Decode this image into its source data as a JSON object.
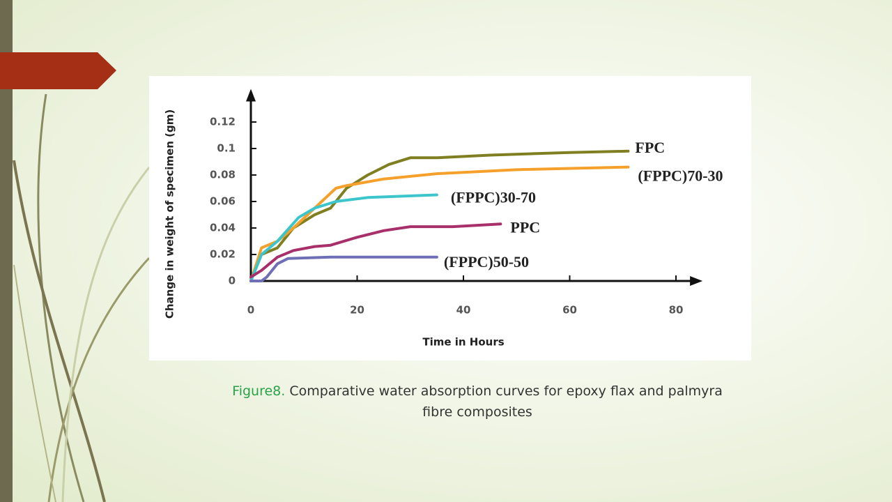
{
  "chart_data": {
    "type": "line",
    "y_label": "Change in weight of specimen (gm)",
    "x_label": "Time in Hours",
    "xlim": [
      0,
      85
    ],
    "ylim": [
      0,
      0.145
    ],
    "xticks": [
      0,
      20,
      40,
      60,
      80
    ],
    "yticks": [
      0,
      0.02,
      0.04,
      0.06,
      0.08,
      0.1,
      0.12
    ],
    "grid": false,
    "series": [
      {
        "name": "FPC",
        "color": "#7f7f22",
        "x": [
          0,
          2,
          5,
          8,
          12,
          15,
          18,
          22,
          26,
          30,
          35,
          45,
          60,
          71
        ],
        "values": [
          0,
          0.02,
          0.025,
          0.04,
          0.05,
          0.055,
          0.07,
          0.08,
          0.088,
          0.093,
          0.093,
          0.095,
          0.097,
          0.098
        ]
      },
      {
        "name": "(FPPC)70-30",
        "color": "#f5a02a",
        "x": [
          0,
          2,
          5,
          8,
          12,
          16,
          18,
          25,
          35,
          50,
          71
        ],
        "values": [
          0,
          0.025,
          0.03,
          0.04,
          0.055,
          0.07,
          0.072,
          0.077,
          0.081,
          0.084,
          0.086
        ]
      },
      {
        "name": "(FPPC)30-70",
        "color": "#3cc6cc",
        "x": [
          0,
          2,
          5,
          9,
          12,
          16,
          22,
          35
        ],
        "values": [
          0,
          0.02,
          0.03,
          0.048,
          0.055,
          0.06,
          0.063,
          0.065
        ]
      },
      {
        "name": "PPC",
        "color": "#a8306a",
        "x": [
          0,
          2,
          5,
          8,
          12,
          15,
          20,
          25,
          30,
          38,
          47
        ],
        "values": [
          0.003,
          0.008,
          0.018,
          0.023,
          0.026,
          0.027,
          0.033,
          0.038,
          0.041,
          0.041,
          0.043
        ]
      },
      {
        "name": "(FPPC)50-50",
        "color": "#6e6fb4",
        "x": [
          0,
          2,
          3,
          5,
          7,
          15,
          35
        ],
        "values": [
          0,
          0,
          0.003,
          0.013,
          0.017,
          0.018,
          0.018
        ]
      }
    ]
  },
  "caption": {
    "label": "Figure8.",
    "text": "Comparative water absorption curves for epoxy flax and palmyra fibre composites"
  }
}
